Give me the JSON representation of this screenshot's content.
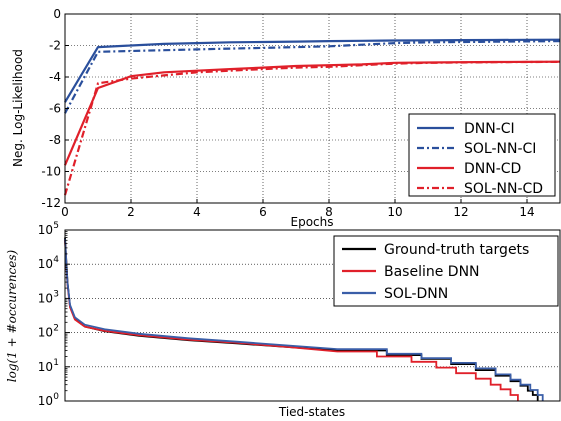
{
  "chart_data": [
    {
      "type": "line",
      "xlabel": "Epochs",
      "ylabel": "Neg. Log-Likelihood",
      "xlim": [
        0,
        15
      ],
      "ylim": [
        -12,
        0
      ],
      "xticks": [
        "0",
        "2",
        "4",
        "6",
        "8",
        "10",
        "12",
        "14"
      ],
      "yticks": [
        "-12",
        "-10",
        "-8",
        "-6",
        "-4",
        "-2",
        "0"
      ],
      "grid": true,
      "legend": "right",
      "series": [
        {
          "name": "DNN-CI",
          "color": "#2a4f9c",
          "style": "solid",
          "x": [
            0,
            1,
            2,
            3,
            4,
            5,
            6,
            7,
            8,
            9,
            10,
            11,
            12,
            13,
            14,
            15
          ],
          "y": [
            -5.6,
            -2.1,
            -2.0,
            -1.9,
            -1.85,
            -1.8,
            -1.78,
            -1.75,
            -1.72,
            -1.7,
            -1.68,
            -1.67,
            -1.66,
            -1.65,
            -1.64,
            -1.63
          ]
        },
        {
          "name": "SOL-NN-CI",
          "color": "#2a4f9c",
          "style": "dashdot",
          "x": [
            0,
            1,
            2,
            3,
            4,
            5,
            6,
            7,
            8,
            9,
            10,
            11,
            12,
            13,
            14,
            15
          ],
          "y": [
            -6.3,
            -2.4,
            -2.35,
            -2.3,
            -2.25,
            -2.2,
            -2.15,
            -2.1,
            -2.05,
            -1.95,
            -1.85,
            -1.8,
            -1.78,
            -1.76,
            -1.74,
            -1.72
          ]
        },
        {
          "name": "DNN-CD",
          "color": "#e0202a",
          "style": "solid",
          "x": [
            0,
            1,
            2,
            3,
            4,
            5,
            6,
            7,
            8,
            9,
            10,
            11,
            12,
            13,
            14,
            15
          ],
          "y": [
            -9.6,
            -4.7,
            -3.95,
            -3.7,
            -3.6,
            -3.5,
            -3.4,
            -3.3,
            -3.25,
            -3.2,
            -3.1,
            -3.08,
            -3.06,
            -3.05,
            -3.04,
            -3.03
          ]
        },
        {
          "name": "SOL-NN-CD",
          "color": "#e0202a",
          "style": "dashdot",
          "x": [
            0,
            1,
            2,
            3,
            4,
            5,
            6,
            7,
            8,
            9,
            10,
            11,
            12,
            13,
            14,
            15
          ],
          "y": [
            -11.5,
            -4.4,
            -4.1,
            -3.9,
            -3.7,
            -3.6,
            -3.5,
            -3.4,
            -3.35,
            -3.25,
            -3.15,
            -3.1,
            -3.08,
            -3.06,
            -3.05,
            -3.04
          ]
        }
      ]
    },
    {
      "type": "line",
      "xlabel": "Tied-states",
      "ylabel": "log(1 + #occurences)",
      "yscale": "log",
      "ylim": [
        1,
        100000
      ],
      "xlim": [
        0,
        1
      ],
      "yticks": [
        {
          "value": 1,
          "base": "10",
          "exp": "0"
        },
        {
          "value": 10,
          "base": "10",
          "exp": "1"
        },
        {
          "value": 100,
          "base": "10",
          "exp": "2"
        },
        {
          "value": 1000,
          "base": "10",
          "exp": "3"
        },
        {
          "value": 10000,
          "base": "10",
          "exp": "4"
        },
        {
          "value": 100000,
          "base": "10",
          "exp": "5"
        }
      ],
      "grid": true,
      "legend": "top-right",
      "series": [
        {
          "name": "Ground-truth targets",
          "color": "#000000",
          "x": [
            0,
            0.005,
            0.01,
            0.02,
            0.04,
            0.08,
            0.15,
            0.25,
            0.35,
            0.45,
            0.55,
            0.65,
            0.72,
            0.78,
            0.83,
            0.87,
            0.9,
            0.92,
            0.935,
            0.945,
            0.955
          ],
          "y": [
            60000,
            3000,
            600,
            250,
            150,
            110,
            80,
            60,
            48,
            38,
            30,
            22,
            17,
            12,
            8,
            5.5,
            3.8,
            2.8,
            2,
            1.5,
            1
          ]
        },
        {
          "name": "Baseline DNN",
          "color": "#e0202a",
          "x": [
            0,
            0.005,
            0.01,
            0.02,
            0.04,
            0.08,
            0.15,
            0.25,
            0.35,
            0.45,
            0.55,
            0.63,
            0.7,
            0.75,
            0.79,
            0.83,
            0.86,
            0.88,
            0.9,
            0.915
          ],
          "y": [
            50000,
            2500,
            550,
            240,
            150,
            112,
            84,
            62,
            50,
            38,
            28,
            20,
            14,
            9.5,
            6.5,
            4.5,
            3,
            2.2,
            1.5,
            1
          ]
        },
        {
          "name": "SOL-DNN",
          "color": "#3a5ea8",
          "x": [
            0,
            0.005,
            0.01,
            0.02,
            0.04,
            0.08,
            0.15,
            0.25,
            0.35,
            0.45,
            0.55,
            0.65,
            0.72,
            0.78,
            0.83,
            0.87,
            0.9,
            0.92,
            0.94,
            0.955,
            0.965
          ],
          "y": [
            55000,
            2800,
            650,
            280,
            170,
            125,
            92,
            68,
            54,
            42,
            33,
            24,
            18,
            13,
            9,
            6,
            4.2,
            3,
            2.1,
            1.5,
            1
          ]
        }
      ]
    }
  ]
}
